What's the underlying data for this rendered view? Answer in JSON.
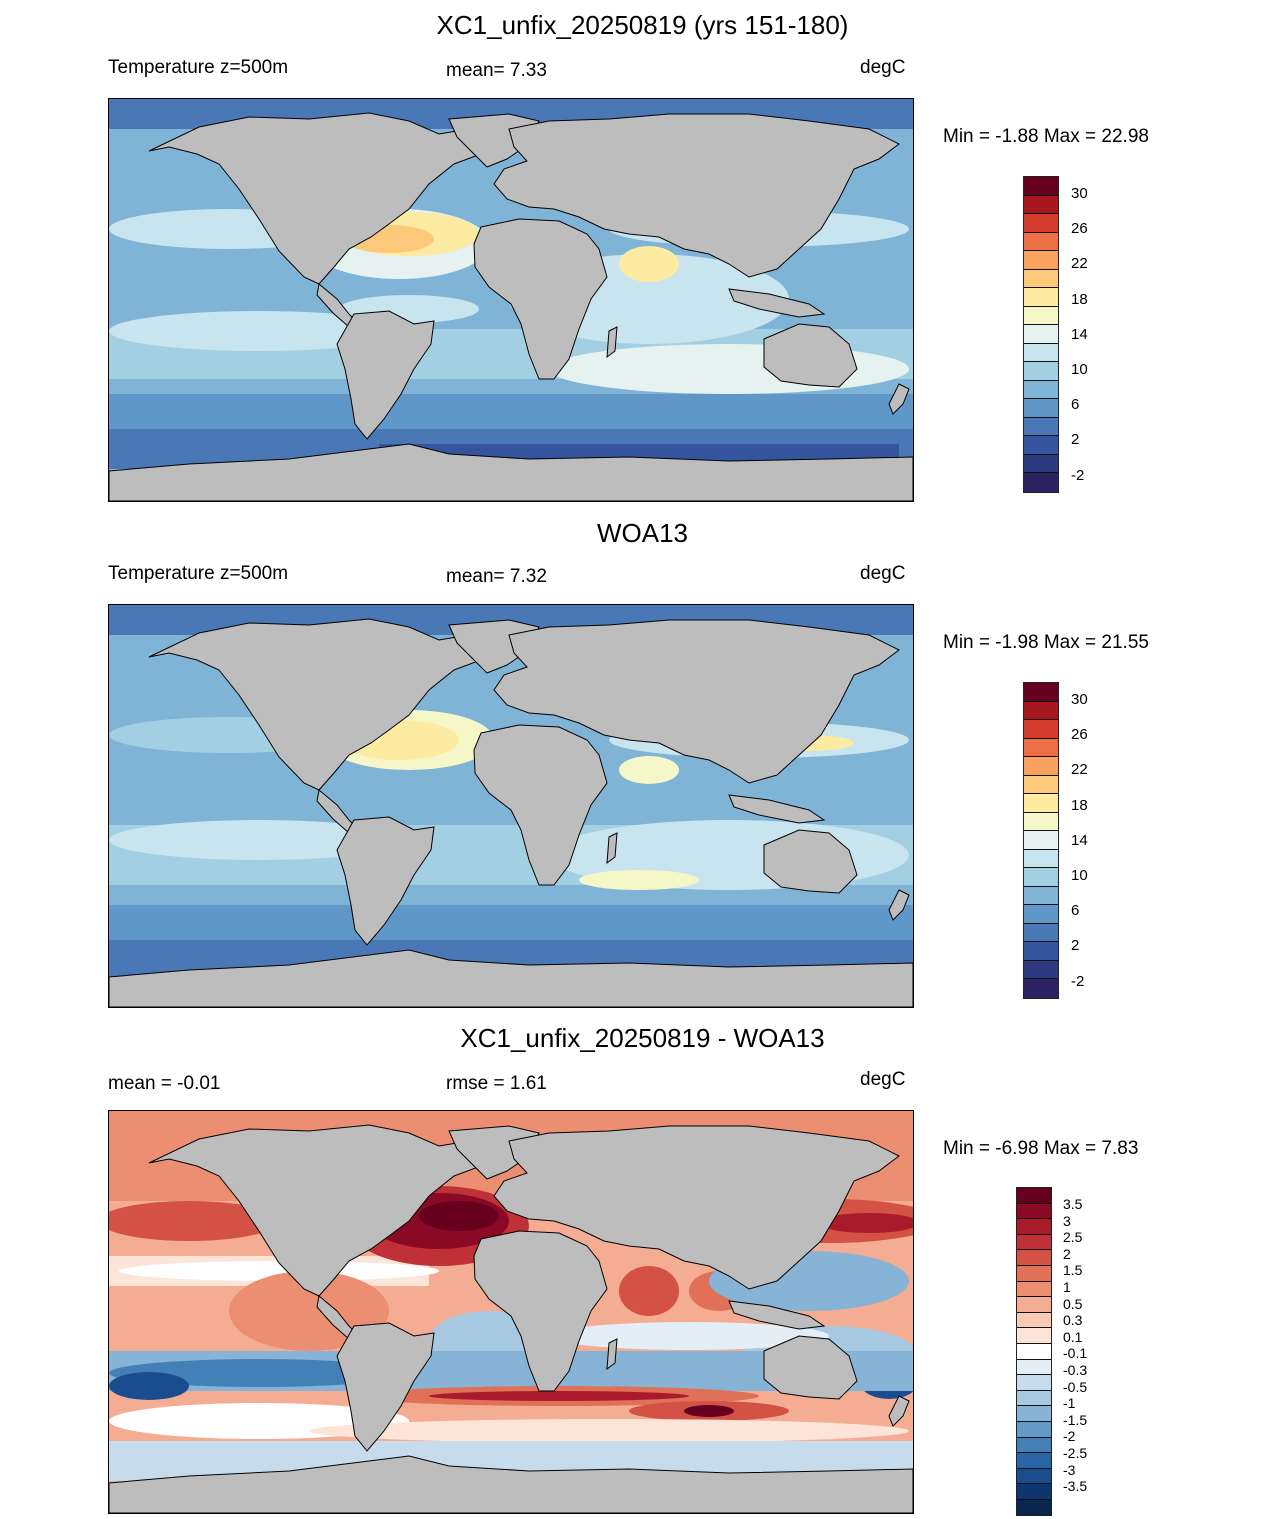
{
  "panels": [
    {
      "title": "XC1_unfix_20250819 (yrs 151-180)",
      "left_label": "Temperature z=500m",
      "center_label": "mean=   7.33",
      "right_label": "degC",
      "minmax": "Min =  -1.88 Max =  22.98"
    },
    {
      "title": "WOA13",
      "left_label": "Temperature z=500m",
      "center_label": "mean=   7.32",
      "right_label": "degC",
      "minmax": "Min =  -1.98 Max =  21.55"
    },
    {
      "title": "XC1_unfix_20250819 - WOA13",
      "left_label": "mean =  -0.01",
      "center_label": "rmse =   1.61",
      "right_label": "degC",
      "minmax": "Min =  -6.98 Max =   7.83"
    }
  ],
  "temp_colorbar": {
    "labels": [
      "30",
      "26",
      "22",
      "18",
      "14",
      "10",
      "6",
      "2",
      "-2"
    ],
    "colors": [
      "#67001f",
      "#a7171e",
      "#d33b2b",
      "#ec6f45",
      "#f9a260",
      "#fcc97b",
      "#fdeba2",
      "#f6f7c9",
      "#e5f2f0",
      "#c7e4ef",
      "#a3cfe3",
      "#7fb4d6",
      "#5f97c8",
      "#4a77b5",
      "#34559e",
      "#2d3a80",
      "#2a2261"
    ]
  },
  "diff_colorbar": {
    "labels": [
      "3.5",
      "3",
      "2.5",
      "2",
      "1.5",
      "1",
      "0.5",
      "0.3",
      "0.1",
      "-0.1",
      "-0.3",
      "-0.5",
      "-1",
      "-1.5",
      "-2",
      "-2.5",
      "-3",
      "-3.5"
    ],
    "colors": [
      "#67001f",
      "#8a0a25",
      "#a91a2b",
      "#c03037",
      "#d35245",
      "#e07058",
      "#ec8e72",
      "#f4ad92",
      "#f9cbb5",
      "#fde4d8",
      "#ffffff",
      "#e3eef6",
      "#c6dcec",
      "#a6c9e1",
      "#86b3d6",
      "#639ac7",
      "#4480b8",
      "#2a66a6",
      "#1a4d8f",
      "#0d3570",
      "#08264e"
    ]
  }
}
